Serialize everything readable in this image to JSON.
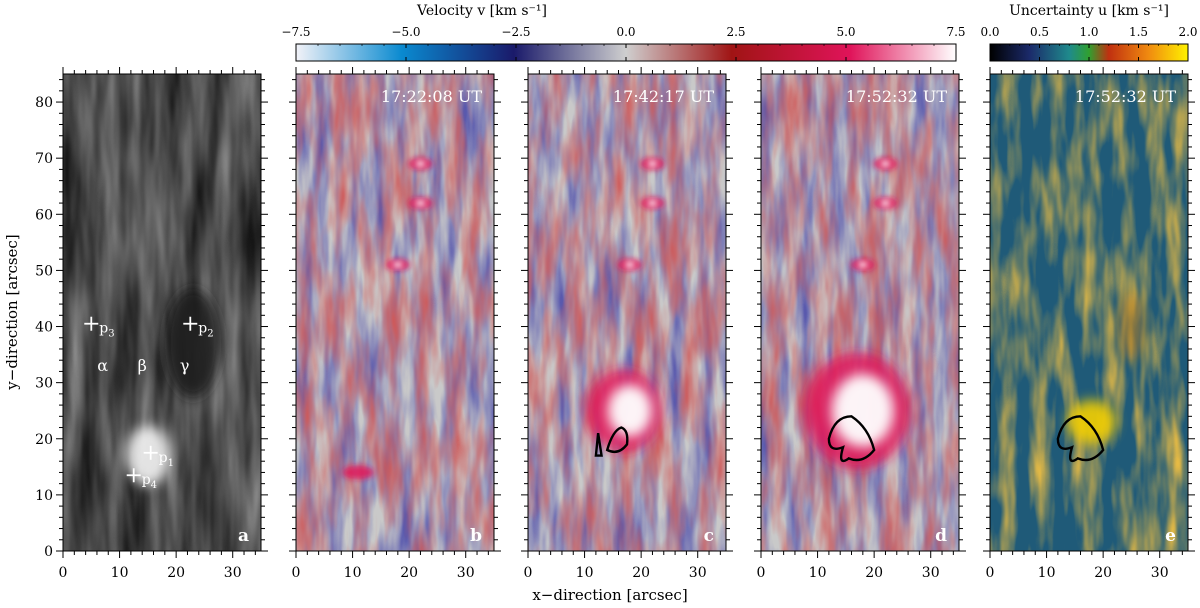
{
  "chart_data": {
    "type": "heatmap",
    "xlabel": "x−direction  [arcsec]",
    "ylabel": "y−direction  [arcsec]",
    "xlim": [
      0,
      35
    ],
    "ylim": [
      0,
      85
    ],
    "x_ticks": [
      0,
      10,
      20,
      30
    ],
    "y_ticks": [
      0,
      10,
      20,
      30,
      40,
      50,
      60,
      70,
      80
    ],
    "panels": [
      {
        "id": "a",
        "label": "a",
        "kind": "intensity",
        "time": ""
      },
      {
        "id": "b",
        "label": "b",
        "kind": "velocity",
        "time": "17:22:08 UT"
      },
      {
        "id": "c",
        "label": "c",
        "kind": "velocity",
        "time": "17:42:17 UT"
      },
      {
        "id": "d",
        "label": "d",
        "kind": "velocity",
        "time": "17:52:32 UT"
      },
      {
        "id": "e",
        "label": "e",
        "kind": "uncertainty",
        "time": "17:52:32 UT"
      }
    ],
    "colorbars": {
      "velocity": {
        "title": "Velocity  v  [km s⁻¹]",
        "range": [
          -7.5,
          7.5
        ],
        "tick_labels": [
          "−7.5",
          "−5.0",
          "−2.5",
          "0.0",
          "2.5",
          "5.0",
          "7.5"
        ],
        "tick_values": [
          -7.5,
          -5.0,
          -2.5,
          0.0,
          2.5,
          5.0,
          7.5
        ]
      },
      "uncertainty": {
        "title": "Uncertainty  u  [km s⁻¹]",
        "range": [
          0.0,
          2.0
        ],
        "tick_labels": [
          "0.0",
          "0.5",
          "1.0",
          "1.5",
          "2.0"
        ],
        "tick_values": [
          0.0,
          0.5,
          1.0,
          1.5,
          2.0
        ]
      }
    },
    "points": [
      {
        "name": "p1",
        "sub": "1",
        "x": 15.5,
        "y": 17.5
      },
      {
        "name": "p2",
        "sub": "2",
        "x": 22.5,
        "y": 40.5
      },
      {
        "name": "p3",
        "sub": "3",
        "x": 5.0,
        "y": 40.5
      },
      {
        "name": "p4",
        "sub": "4",
        "x": 12.5,
        "y": 13.5
      }
    ],
    "region_labels": [
      {
        "name": "alpha",
        "text": "α",
        "x": 7.0,
        "y": 33.0
      },
      {
        "name": "beta",
        "text": "β",
        "x": 14.0,
        "y": 33.0
      },
      {
        "name": "gamma",
        "text": "γ",
        "x": 21.5,
        "y": 33.0
      }
    ],
    "colors": {
      "vel_neg": "#0a6cb4",
      "vel_dark_blue": "#1a1a6a",
      "vel_zero": "#c9c9c9",
      "vel_dark_red": "#a01414",
      "vel_pos": "#e0145a",
      "unc_low": "#0f1a3a",
      "unc_mid": "#1f7a8c",
      "unc_high": "#f5d000"
    }
  }
}
